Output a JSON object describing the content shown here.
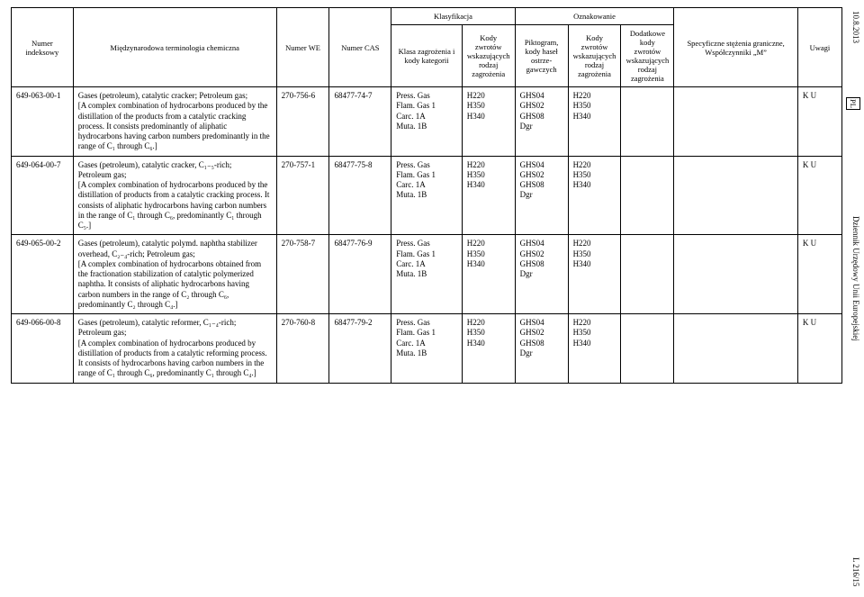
{
  "side": {
    "top": "10.8.2013",
    "pl": "PL",
    "mid": "Dziennik Urzędowy Unii Europejskiej",
    "bot": "L 216/15"
  },
  "header": {
    "idx": "Numer indeksowy",
    "term": "Międzynarodowa terminologia chemiczna",
    "we": "Numer WE",
    "cas": "Numer CAS",
    "klasyfikacja": "Klasyfikacja",
    "oznakowanie": "Oznakowanie",
    "klasa": "Klasa zagrożenia i kody kategorii",
    "kody1": "Kody zwrotów wskazujących rodzaj zagrożenia",
    "pikt": "Piktogram, kody haseł ostrze­gawczych",
    "kody2": "Kody zwrotów wskazujących rodzaj zagrożenia",
    "dod": "Dodatkowe kody zwrotów wskazujących rodzaj zagrożenia",
    "spec": "Specyficzne stężenia graniczne, Współczynniki „M”",
    "uwagi": "Uwagi"
  },
  "rows": [
    {
      "idx": "649-063-00-1",
      "term": "Gases (petroleum), catalytic cracker; Petroleum gas;\n[A complex combination of hydro­carbons produced by the distillation of the products from a catalytic cracking process. It consists predominantly of aliphatic hydrocarbons having carbon numbers predominantly in the range of C₁ through C₆.]",
      "we": "270-756-6",
      "cas": "68477-74-7",
      "klasa": "Press. Gas\nFlam. Gas 1\nCarc. 1A\nMuta. 1B",
      "kody1": "H220\nH350\nH340",
      "pikt": "GHS04\nGHS02\nGHS08\nDgr",
      "kody2": "H220\nH350\nH340",
      "dod": "",
      "spec": "",
      "uwagi": "K U"
    },
    {
      "idx": "649-064-00-7",
      "term": "Gases (petroleum), catalytic cracker, C₁₋₅-rich;\nPetroleum gas;\n[A complex combination of hydro­carbons produced by the distillation of products from a catalytic cracking process. It consists of aliphatic hydro­carbons having carbon numbers in the range of C₁ through C₆, predominantly C₁ through C₅.]",
      "we": "270-757-1",
      "cas": "68477-75-8",
      "klasa": "Press. Gas\nFlam. Gas 1\nCarc. 1A\nMuta. 1B",
      "kody1": "H220\nH350\nH340",
      "pikt": "GHS04\nGHS02\nGHS08\nDgr",
      "kody2": "H220\nH350\nH340",
      "dod": "",
      "spec": "",
      "uwagi": "K U"
    },
    {
      "idx": "649-065-00-2",
      "term": "Gases (petroleum), catalytic polymd. naphtha stabilizer overhead, C₂₋₄-rich; Petroleum gas;\n[A complex combination of hydro­carbons obtained from the frac­tionation stabilization of catalytic polymerized naphtha. It consists of aliphatic hydrocarbons having carbon numbers in the range of C₂ through C₆, predominantly C₂ through C₄.]",
      "we": "270-758-7",
      "cas": "68477-76-9",
      "klasa": "Press. Gas\nFlam. Gas 1\nCarc. 1A\nMuta. 1B",
      "kody1": "H220\nH350\nH340",
      "pikt": "GHS04\nGHS02\nGHS08\nDgr",
      "kody2": "H220\nH350\nH340",
      "dod": "",
      "spec": "",
      "uwagi": "K U"
    },
    {
      "idx": "649-066-00-8",
      "term": "Gases (petroleum), catalytic reformer, C₁₋₄-rich;\nPetroleum gas;\n[A complex combination of hydro­carbons produced by distillation of products from a catalytic reforming process. It consists of hydrocarbons having carbon numbers in the range of C₁ through C₆, predominantly C₁ through C₄.]",
      "we": "270-760-8",
      "cas": "68477-79-2",
      "klasa": "Press. Gas\nFlam. Gas 1\nCarc. 1A\nMuta. 1B",
      "kody1": "H220\nH350\nH340",
      "pikt": "GHS04\nGHS02\nGHS08\nDgr",
      "kody2": "H220\nH350\nH340",
      "dod": "",
      "spec": "",
      "uwagi": "K U"
    }
  ]
}
